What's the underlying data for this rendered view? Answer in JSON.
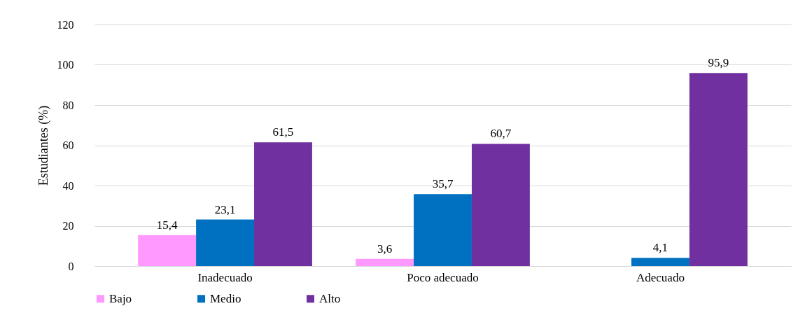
{
  "chart_data": {
    "type": "bar",
    "ylabel": "Estudiantes (%)",
    "categories": [
      "Inadecuado",
      "Poco adecuado",
      "Adecuado"
    ],
    "series": [
      {
        "name": "Bajo",
        "color": "#ff99ff",
        "values": [
          15.4,
          3.6,
          null
        ],
        "value_labels": [
          "15,4",
          "3,6",
          null
        ]
      },
      {
        "name": "Medio",
        "color": "#0070c0",
        "values": [
          23.1,
          35.7,
          4.1
        ],
        "value_labels": [
          "23,1",
          "35,7",
          "4,1"
        ]
      },
      {
        "name": "Alto",
        "color": "#7030a0",
        "values": [
          61.5,
          60.7,
          95.9
        ],
        "value_labels": [
          "61,5",
          "60,7",
          "95,9"
        ]
      }
    ],
    "ylim": [
      0,
      120
    ],
    "yticks": [
      0,
      20,
      40,
      60,
      80,
      100,
      120
    ],
    "grid": "y",
    "legend": "bottom"
  }
}
